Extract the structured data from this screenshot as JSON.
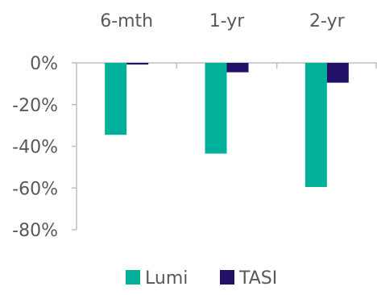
{
  "chart_data": {
    "type": "bar",
    "categories": [
      "6-mth",
      "1-yr",
      "2-yr"
    ],
    "series": [
      {
        "name": "Lumi",
        "values": [
          -34.5,
          -43.5,
          -59.5
        ]
      },
      {
        "name": "TASI",
        "values": [
          -0.8,
          -4.5,
          -9.5
        ]
      }
    ],
    "ylim": [
      -80,
      0
    ],
    "yticks": [
      0,
      -20,
      -40,
      -60,
      -80
    ],
    "ytick_labels": [
      "0%",
      "-20%",
      "-40%",
      "-60%",
      "-80%"
    ],
    "category_axis_position": "top",
    "legend_position": "bottom-center",
    "grid": false,
    "colors": {
      "Lumi": "#00b09b",
      "TASI": "#221166",
      "axis": "#bfbfbf",
      "text": "#595959"
    }
  }
}
